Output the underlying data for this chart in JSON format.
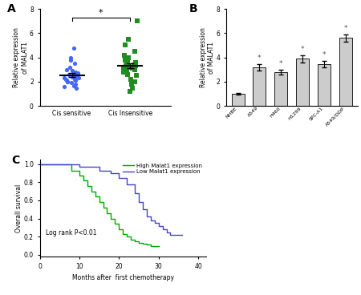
{
  "panel_A": {
    "label": "A",
    "group1_label": "Cis sensitive",
    "group2_label": "Cis Insensitive",
    "ylabel": "Relative expression\nof MALAT1",
    "ylim": [
      0,
      8
    ],
    "yticks": [
      0,
      2,
      4,
      6,
      8
    ],
    "group1_color": "#4466ff",
    "group2_color": "#228B22",
    "group1_points": [
      1.5,
      1.6,
      1.7,
      1.8,
      1.9,
      2.0,
      2.0,
      2.1,
      2.1,
      2.2,
      2.2,
      2.3,
      2.3,
      2.4,
      2.4,
      2.5,
      2.5,
      2.6,
      2.7,
      2.8,
      2.9,
      3.0,
      3.2,
      3.5,
      3.8,
      4.0,
      4.8
    ],
    "group2_points": [
      1.2,
      1.5,
      1.8,
      2.0,
      2.2,
      2.5,
      2.6,
      2.8,
      2.9,
      3.0,
      3.0,
      3.1,
      3.1,
      3.2,
      3.2,
      3.3,
      3.3,
      3.4,
      3.4,
      3.5,
      3.6,
      3.7,
      3.8,
      4.0,
      4.2,
      4.5,
      5.0,
      5.5,
      7.0
    ],
    "significance": "*"
  },
  "panel_B": {
    "label": "B",
    "ylabel": "Relative expression\nof MALAT1",
    "ylim": [
      0,
      8
    ],
    "yticks": [
      0,
      2,
      4,
      6,
      8
    ],
    "categories": [
      "NHBE",
      "A549",
      "H460",
      "H1299",
      "SPC-A1",
      "A549/DDP"
    ],
    "values": [
      1.0,
      3.2,
      2.8,
      3.9,
      3.45,
      5.6
    ],
    "errors": [
      0.05,
      0.25,
      0.2,
      0.3,
      0.25,
      0.3
    ],
    "bar_color": "#cccccc",
    "significance_mask": [
      false,
      true,
      true,
      true,
      true,
      true
    ],
    "significance_symbol": "*"
  },
  "panel_C": {
    "label": "C",
    "xlabel": "Months after  first chemotherapy",
    "ylabel": "Overall survival",
    "xlim": [
      0,
      42
    ],
    "ylim": [
      -0.02,
      1.05
    ],
    "xticks": [
      0,
      10,
      20,
      30,
      40
    ],
    "yticks": [
      0.0,
      0.2,
      0.4,
      0.6,
      0.8,
      1.0
    ],
    "annotation": "Log rank P<0.01",
    "high_color": "#00aa00",
    "low_color": "#4444cc",
    "high_label": "High Malat1 expression",
    "low_label": "Low Malat1 expression",
    "high_x": [
      0,
      2,
      4,
      6,
      8,
      10,
      11,
      12,
      13,
      14,
      15,
      16,
      17,
      18,
      19,
      20,
      21,
      22,
      23,
      24,
      25,
      26,
      27,
      28,
      29,
      30
    ],
    "high_y": [
      1.0,
      1.0,
      1.0,
      1.0,
      0.93,
      0.87,
      0.82,
      0.76,
      0.7,
      0.64,
      0.58,
      0.52,
      0.46,
      0.4,
      0.34,
      0.28,
      0.23,
      0.2,
      0.17,
      0.15,
      0.13,
      0.12,
      0.11,
      0.1,
      0.1,
      0.1
    ],
    "low_x": [
      0,
      5,
      10,
      15,
      18,
      20,
      22,
      24,
      25,
      26,
      27,
      28,
      29,
      30,
      31,
      32,
      33,
      34,
      35,
      36
    ],
    "low_y": [
      1.0,
      1.0,
      0.97,
      0.93,
      0.9,
      0.85,
      0.78,
      0.68,
      0.58,
      0.5,
      0.42,
      0.38,
      0.35,
      0.32,
      0.28,
      0.25,
      0.22,
      0.22,
      0.22,
      0.22
    ]
  }
}
